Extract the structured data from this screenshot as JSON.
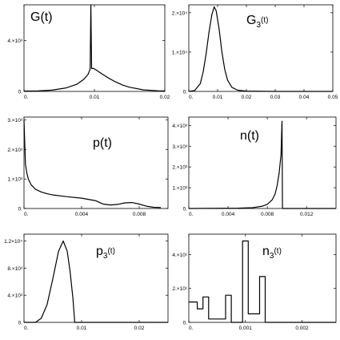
{
  "chart_data": [
    {
      "type": "line",
      "title": "G(t)",
      "title_parts": {
        "main": "G",
        "sub": "",
        "tail": "(t)"
      },
      "xlim": [
        0,
        0.02
      ],
      "ylim": [
        0,
        6800
      ],
      "xticks": [
        0,
        0.01,
        0.02
      ],
      "xtick_labels": [
        "0.",
        "0.01",
        "0.02"
      ],
      "yticks": [
        0,
        4000
      ],
      "ytick_labels": [
        "0.",
        "4.×10³"
      ],
      "series": [
        {
          "points": [
            [
              0,
              25
            ],
            [
              0.002,
              40
            ],
            [
              0.004,
              100
            ],
            [
              0.006,
              280
            ],
            [
              0.0075,
              560
            ],
            [
              0.0085,
              950
            ],
            [
              0.0091,
              1350
            ],
            [
              0.0094,
              1750
            ],
            [
              0.0095,
              6800
            ],
            [
              0.0096,
              1800
            ],
            [
              0.0099,
              1800
            ],
            [
              0.0102,
              1700
            ],
            [
              0.011,
              1400
            ],
            [
              0.012,
              1050
            ],
            [
              0.013,
              750
            ],
            [
              0.014,
              500
            ],
            [
              0.015,
              330
            ],
            [
              0.017,
              120
            ],
            [
              0.019,
              50
            ],
            [
              0.02,
              40
            ]
          ]
        }
      ]
    },
    {
      "type": "line",
      "title": "G3(t)",
      "title_parts": {
        "main": "G",
        "sub": "3",
        "tail": "(t)"
      },
      "xlim": [
        0,
        0.05
      ],
      "ylim": [
        0,
        22000
      ],
      "xticks": [
        0,
        0.01,
        0.02,
        0.03,
        0.04,
        0.05
      ],
      "xtick_labels": [
        "0.",
        "0.01",
        "0.02",
        "0.03",
        "0.04",
        "0.05"
      ],
      "yticks": [
        0,
        10000,
        20000
      ],
      "ytick_labels": [
        "0.",
        "1.×10⁴",
        "2.×10⁴"
      ],
      "series": [
        {
          "points": [
            [
              0,
              0
            ],
            [
              0.002,
              200
            ],
            [
              0.004,
              2000
            ],
            [
              0.005,
              5000
            ],
            [
              0.006,
              9500
            ],
            [
              0.007,
              15000
            ],
            [
              0.008,
              19500
            ],
            [
              0.0088,
              21500
            ],
            [
              0.0095,
              20500
            ],
            [
              0.0105,
              16000
            ],
            [
              0.0115,
              10000
            ],
            [
              0.0125,
              5500
            ],
            [
              0.0135,
              2800
            ],
            [
              0.015,
              1000
            ],
            [
              0.017,
              300
            ],
            [
              0.02,
              80
            ],
            [
              0.03,
              0
            ],
            [
              0.05,
              0
            ]
          ]
        }
      ]
    },
    {
      "type": "line",
      "title": "p(t)",
      "title_parts": {
        "main": "p",
        "sub": "",
        "tail": "(t)"
      },
      "xlim": [
        0,
        0.01
      ],
      "ylim": [
        0,
        3100
      ],
      "xticks": [
        0,
        0.004,
        0.008
      ],
      "xtick_labels": [
        "0.",
        "0.004",
        "0.008"
      ],
      "yticks": [
        0,
        1000,
        2000,
        3000
      ],
      "ytick_labels": [
        "0.",
        "1.×10³",
        "2.×10³",
        "3.×10³"
      ],
      "series": [
        {
          "points": [
            [
              0,
              3000
            ],
            [
              0.0001,
              1500
            ],
            [
              0.0002,
              1200
            ],
            [
              0.0003,
              1000
            ],
            [
              0.0005,
              800
            ],
            [
              0.0008,
              650
            ],
            [
              0.0012,
              560
            ],
            [
              0.0016,
              500
            ],
            [
              0.002,
              460
            ],
            [
              0.003,
              400
            ],
            [
              0.004,
              350
            ],
            [
              0.005,
              260
            ],
            [
              0.0055,
              150
            ],
            [
              0.006,
              120
            ],
            [
              0.0065,
              140
            ],
            [
              0.007,
              190
            ],
            [
              0.0075,
              200
            ],
            [
              0.008,
              150
            ],
            [
              0.0085,
              80
            ],
            [
              0.009,
              40
            ],
            [
              0.0095,
              30
            ]
          ]
        }
      ]
    },
    {
      "type": "line",
      "title": "n(t)",
      "title_parts": {
        "main": "n",
        "sub": "",
        "tail": "(t)"
      },
      "xlim": [
        0,
        0.015
      ],
      "ylim": [
        0,
        4400
      ],
      "xticks": [
        0,
        0.004,
        0.008,
        0.012
      ],
      "xtick_labels": [
        "0.",
        "0.004",
        "0.008",
        "0.012"
      ],
      "yticks": [
        0,
        1000,
        2000,
        3000,
        4000
      ],
      "ytick_labels": [
        "0.",
        "1.×10³",
        "2.×10³",
        "3.×10³",
        "4.×10³"
      ],
      "series": [
        {
          "points": [
            [
              0,
              0
            ],
            [
              0.005,
              15
            ],
            [
              0.0065,
              40
            ],
            [
              0.0075,
              110
            ],
            [
              0.008,
              200
            ],
            [
              0.0085,
              420
            ],
            [
              0.0088,
              700
            ],
            [
              0.009,
              1100
            ],
            [
              0.0092,
              1700
            ],
            [
              0.0094,
              2600
            ],
            [
              0.0095,
              4200
            ],
            [
              0.00955,
              0
            ],
            [
              0.015,
              0
            ]
          ]
        }
      ]
    },
    {
      "type": "line",
      "title": "p3(t)",
      "title_parts": {
        "main": "p",
        "sub": "3",
        "tail": "(t)"
      },
      "xlim": [
        0,
        0.025
      ],
      "ylim": [
        0,
        13000
      ],
      "xticks": [
        0,
        0.01,
        0.02
      ],
      "xtick_labels": [
        "0.",
        "0.01",
        "0.02"
      ],
      "yticks": [
        0,
        4000,
        8000,
        12000
      ],
      "ytick_labels": [
        "0.",
        "4.×10³",
        "8.×10³",
        "1.2×10⁴"
      ],
      "series": [
        {
          "points": [
            [
              0,
              0
            ],
            [
              0.002,
              0
            ],
            [
              0.003,
              600
            ],
            [
              0.004,
              2600
            ],
            [
              0.005,
              6400
            ],
            [
              0.006,
              10500
            ],
            [
              0.0068,
              12000
            ],
            [
              0.0075,
              10500
            ],
            [
              0.008,
              7500
            ],
            [
              0.0085,
              3500
            ],
            [
              0.0088,
              0
            ],
            [
              0.025,
              0
            ]
          ]
        }
      ]
    },
    {
      "type": "line",
      "title": "n3(t)",
      "title_parts": {
        "main": "n",
        "sub": "3",
        "tail": "(t)"
      },
      "xlim": [
        0,
        0.0026
      ],
      "ylim": [
        0,
        52
      ],
      "xticks": [
        0,
        0.001,
        0.002
      ],
      "xtick_labels": [
        "0.",
        "0.001",
        "0.002"
      ],
      "yticks": [
        0,
        20,
        40
      ],
      "ytick_labels": [
        "0.",
        "2.×10¹",
        "4.×10¹"
      ],
      "series": [
        {
          "points": [
            [
              0,
              12
            ],
            [
              5e-05,
              12
            ],
            [
              5e-05,
              12
            ],
            [
              0.00015,
              12
            ],
            [
              0.00015,
              8
            ],
            [
              0.00025,
              8
            ],
            [
              0.00025,
              15
            ],
            [
              0.00035,
              15
            ],
            [
              0.00035,
              2
            ],
            [
              0.00065,
              2
            ],
            [
              0.00065,
              16
            ],
            [
              0.00075,
              16
            ],
            [
              0.00075,
              0
            ],
            [
              0.00095,
              0
            ],
            [
              0.00095,
              48
            ],
            [
              0.00105,
              48
            ],
            [
              0.00105,
              5
            ],
            [
              0.00125,
              5
            ],
            [
              0.00125,
              27
            ],
            [
              0.00135,
              27
            ],
            [
              0.00135,
              0
            ],
            [
              0.0026,
              0
            ]
          ]
        }
      ]
    }
  ]
}
